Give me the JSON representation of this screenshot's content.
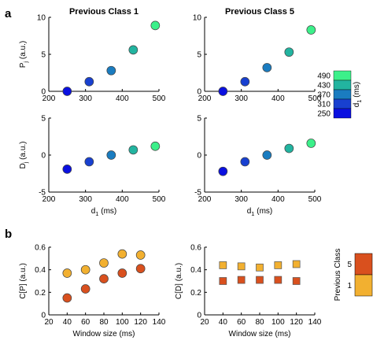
{
  "panel_labels": {
    "a": "a",
    "b": "b"
  },
  "colorbar_d1": {
    "label_main": "d",
    "label_sub": "1",
    "label_unit": " (ms)",
    "ticks": [
      "490",
      "430",
      "370",
      "310",
      "250"
    ],
    "colors": [
      "#3cf08a",
      "#22b4a0",
      "#1a7cc0",
      "#1840d0",
      "#0a10e0"
    ]
  },
  "colorbar_class": {
    "label": "Previous Class",
    "ticks": [
      "5",
      "1"
    ],
    "colors": [
      "#d9501e",
      "#f2b030"
    ]
  },
  "chart_data": [
    {
      "id": "a-P-class1",
      "type": "scatter",
      "title": "Previous Class 1",
      "ylabel_main": "P",
      "ylabel_sub": "j",
      "ylabel_unit": " (a.u.)",
      "xlabel_main": "",
      "xlabel_sub": "",
      "xlabel_unit": "",
      "xlim": [
        200,
        500
      ],
      "ylim": [
        0,
        10
      ],
      "xticks": [
        200,
        300,
        400,
        500
      ],
      "yticks": [
        0,
        5,
        10
      ],
      "marker": "circle",
      "points": [
        {
          "x": 250,
          "y": 0.0,
          "color": "#0a10e0"
        },
        {
          "x": 310,
          "y": 1.3,
          "color": "#1840d0"
        },
        {
          "x": 370,
          "y": 2.8,
          "color": "#1a7cc0"
        },
        {
          "x": 430,
          "y": 5.6,
          "color": "#22b4a0"
        },
        {
          "x": 490,
          "y": 8.9,
          "color": "#3cf08a"
        }
      ]
    },
    {
      "id": "a-P-class5",
      "type": "scatter",
      "title": "Previous Class 5",
      "ylabel_main": "",
      "ylabel_sub": "",
      "ylabel_unit": "",
      "xlabel_main": "",
      "xlabel_sub": "",
      "xlabel_unit": "",
      "xlim": [
        200,
        500
      ],
      "ylim": [
        0,
        10
      ],
      "xticks": [
        200,
        300,
        400,
        500
      ],
      "yticks": [
        0,
        5,
        10
      ],
      "marker": "circle",
      "points": [
        {
          "x": 250,
          "y": 0.0,
          "color": "#0a10e0"
        },
        {
          "x": 310,
          "y": 1.3,
          "color": "#1840d0"
        },
        {
          "x": 370,
          "y": 3.2,
          "color": "#1a7cc0"
        },
        {
          "x": 430,
          "y": 5.3,
          "color": "#22b4a0"
        },
        {
          "x": 490,
          "y": 8.3,
          "color": "#3cf08a"
        }
      ]
    },
    {
      "id": "a-D-class1",
      "type": "scatter",
      "title": "",
      "ylabel_main": "D",
      "ylabel_sub": "j",
      "ylabel_unit": " (a.u.)",
      "xlabel_main": "d",
      "xlabel_sub": "1",
      "xlabel_unit": " (ms)",
      "xlim": [
        200,
        500
      ],
      "ylim": [
        -5,
        5
      ],
      "xticks": [
        200,
        300,
        400,
        500
      ],
      "yticks": [
        -5,
        0,
        5
      ],
      "marker": "circle",
      "points": [
        {
          "x": 250,
          "y": -1.9,
          "color": "#0a10e0"
        },
        {
          "x": 310,
          "y": -0.9,
          "color": "#1840d0"
        },
        {
          "x": 370,
          "y": 0.0,
          "color": "#1a7cc0"
        },
        {
          "x": 430,
          "y": 0.7,
          "color": "#22b4a0"
        },
        {
          "x": 490,
          "y": 1.2,
          "color": "#3cf08a"
        }
      ]
    },
    {
      "id": "a-D-class5",
      "type": "scatter",
      "title": "",
      "ylabel_main": "",
      "ylabel_sub": "",
      "ylabel_unit": "",
      "xlabel_main": "d",
      "xlabel_sub": "1",
      "xlabel_unit": " (ms)",
      "xlim": [
        200,
        500
      ],
      "ylim": [
        -5,
        5
      ],
      "xticks": [
        200,
        300,
        400,
        500
      ],
      "yticks": [
        -5,
        0,
        5
      ],
      "marker": "circle",
      "points": [
        {
          "x": 250,
          "y": -2.2,
          "color": "#0a10e0"
        },
        {
          "x": 310,
          "y": -0.9,
          "color": "#1840d0"
        },
        {
          "x": 370,
          "y": 0.0,
          "color": "#1a7cc0"
        },
        {
          "x": 430,
          "y": 0.9,
          "color": "#22b4a0"
        },
        {
          "x": 490,
          "y": 1.6,
          "color": "#3cf08a"
        }
      ]
    },
    {
      "id": "b-CP",
      "type": "scatter",
      "title": "",
      "ylabel_main": "C[P] (a.u.)",
      "ylabel_sub": "",
      "ylabel_unit": "",
      "xlabel_main": "Window size (ms)",
      "xlabel_sub": "",
      "xlabel_unit": "",
      "xlim": [
        20,
        140
      ],
      "ylim": [
        0,
        0.6
      ],
      "xticks": [
        20,
        40,
        60,
        80,
        100,
        120,
        140
      ],
      "yticks": [
        0,
        0.2,
        0.4,
        0.6
      ],
      "ytick_labels": [
        "0",
        "0.2",
        "0.4",
        "0.6"
      ],
      "marker": "circle",
      "series": [
        {
          "name": "1",
          "color": "#f2b030",
          "x": [
            40,
            60,
            80,
            100,
            120
          ],
          "y": [
            0.37,
            0.4,
            0.46,
            0.54,
            0.53
          ]
        },
        {
          "name": "5",
          "color": "#d9501e",
          "x": [
            40,
            60,
            80,
            100,
            120
          ],
          "y": [
            0.15,
            0.23,
            0.32,
            0.37,
            0.41
          ]
        }
      ]
    },
    {
      "id": "b-CD",
      "type": "scatter",
      "title": "",
      "ylabel_main": "C[D] (a.u.)",
      "ylabel_sub": "",
      "ylabel_unit": "",
      "xlabel_main": "Window size (ms)",
      "xlabel_sub": "",
      "xlabel_unit": "",
      "xlim": [
        20,
        140
      ],
      "ylim": [
        0,
        0.6
      ],
      "xticks": [
        20,
        40,
        60,
        80,
        100,
        120,
        140
      ],
      "yticks": [
        0,
        0.2,
        0.4,
        0.6
      ],
      "ytick_labels": [
        "0",
        "0.2",
        "0.4",
        "0.6"
      ],
      "marker": "square",
      "series": [
        {
          "name": "1",
          "color": "#f2b030",
          "x": [
            40,
            60,
            80,
            100,
            120
          ],
          "y": [
            0.44,
            0.43,
            0.42,
            0.44,
            0.45
          ]
        },
        {
          "name": "5",
          "color": "#d9501e",
          "x": [
            40,
            60,
            80,
            100,
            120
          ],
          "y": [
            0.3,
            0.31,
            0.31,
            0.31,
            0.3
          ]
        }
      ]
    }
  ]
}
